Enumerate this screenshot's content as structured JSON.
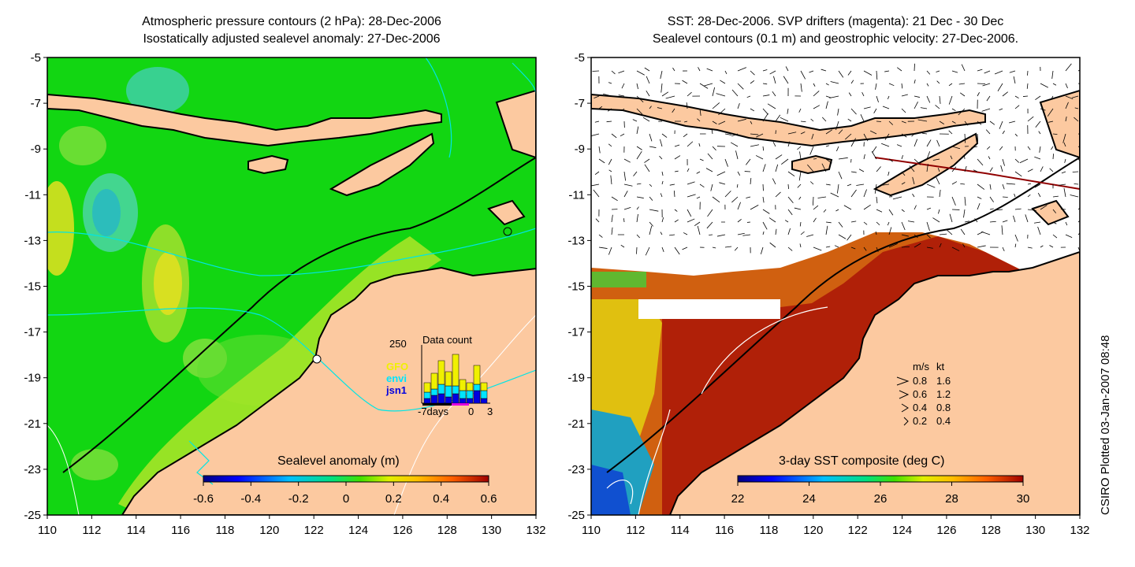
{
  "left_panel": {
    "title_line1": "Atmospheric pressure contours (2 hPa): 28-Dec-2006",
    "title_line2": "Isostatically adjusted sealevel anomaly: 27-Dec-2006",
    "colorbar_title": "Sealevel anomaly (m)",
    "colorbar_ticks": [
      "-0.6",
      "-0.4",
      "-0.2",
      "0",
      "0.2",
      "0.4",
      "0.6"
    ],
    "data_count": {
      "label": "Data count",
      "y_tick": "250",
      "x_ticks": [
        "-7days",
        "0",
        "3"
      ],
      "legend": [
        {
          "name": "GFO",
          "color": "#f0f000"
        },
        {
          "name": "envi",
          "color": "#00e5ff"
        },
        {
          "name": "jsn1",
          "color": "#0000e0"
        }
      ]
    }
  },
  "right_panel": {
    "title_line1": "SST: 28-Dec-2006. SVP drifters (magenta): 21 Dec - 30 Dec",
    "title_line2": "Sealevel contours (0.1 m) and geostrophic velocity: 27-Dec-2006.",
    "colorbar_title": "3-day SST composite (deg C)",
    "colorbar_ticks": [
      "22",
      "24",
      "26",
      "28",
      "30"
    ],
    "velocity_key": {
      "header_ms": "m/s",
      "header_kt": "kt",
      "rows": [
        {
          "ms": "0.8",
          "kt": "1.6"
        },
        {
          "ms": "0.6",
          "kt": "1.2"
        },
        {
          "ms": "0.4",
          "kt": "0.8"
        },
        {
          "ms": "0.2",
          "kt": "0.4"
        }
      ]
    }
  },
  "axes": {
    "x_ticks": [
      "110",
      "112",
      "114",
      "116",
      "118",
      "120",
      "122",
      "124",
      "126",
      "128",
      "130",
      "132"
    ],
    "y_ticks": [
      "-5",
      "-7",
      "-9",
      "-11",
      "-13",
      "-15",
      "-17",
      "-19",
      "-21",
      "-23",
      "-25"
    ]
  },
  "credit": "CSIRO Plotted 03-Jan-2007 08:48",
  "colors": {
    "land": "#fcc9a0",
    "ocean_green": "#12d612",
    "coast": "#000000",
    "pressure_contour": "#00e5e5"
  }
}
